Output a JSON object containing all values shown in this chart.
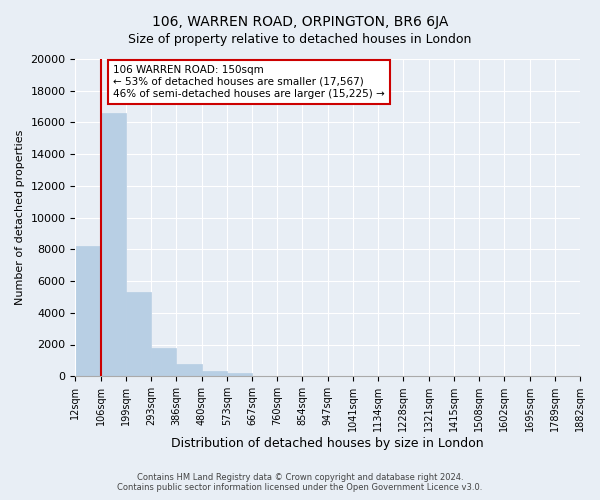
{
  "title": "106, WARREN ROAD, ORPINGTON, BR6 6JA",
  "subtitle": "Size of property relative to detached houses in London",
  "xlabel": "Distribution of detached houses by size in London",
  "ylabel": "Number of detached properties",
  "bin_labels": [
    "12sqm",
    "106sqm",
    "199sqm",
    "293sqm",
    "386sqm",
    "480sqm",
    "573sqm",
    "667sqm",
    "760sqm",
    "854sqm",
    "947sqm",
    "1041sqm",
    "1134sqm",
    "1228sqm",
    "1321sqm",
    "1415sqm",
    "1508sqm",
    "1602sqm",
    "1695sqm",
    "1789sqm",
    "1882sqm"
  ],
  "bar_values": [
    8200,
    16600,
    5300,
    1800,
    800,
    300,
    200,
    0,
    0,
    0,
    0,
    0,
    0,
    0,
    0,
    0,
    0,
    0,
    0,
    0
  ],
  "bar_color": "#b8cfe4",
  "bar_edge_color": "#b8cfe4",
  "property_line_x": 1,
  "property_line_color": "#cc0000",
  "annotation_title": "106 WARREN ROAD: 150sqm",
  "annotation_line1": "← 53% of detached houses are smaller (17,567)",
  "annotation_line2": "46% of semi-detached houses are larger (15,225) →",
  "annotation_box_color": "#ffffff",
  "annotation_box_edge_color": "#cc0000",
  "ylim": [
    0,
    20000
  ],
  "yticks": [
    0,
    2000,
    4000,
    6000,
    8000,
    10000,
    12000,
    14000,
    16000,
    18000,
    20000
  ],
  "background_color": "#e8eef5",
  "plot_bg_color": "#e8eef5",
  "footer_line1": "Contains HM Land Registry data © Crown copyright and database right 2024.",
  "footer_line2": "Contains public sector information licensed under the Open Government Licence v3.0."
}
